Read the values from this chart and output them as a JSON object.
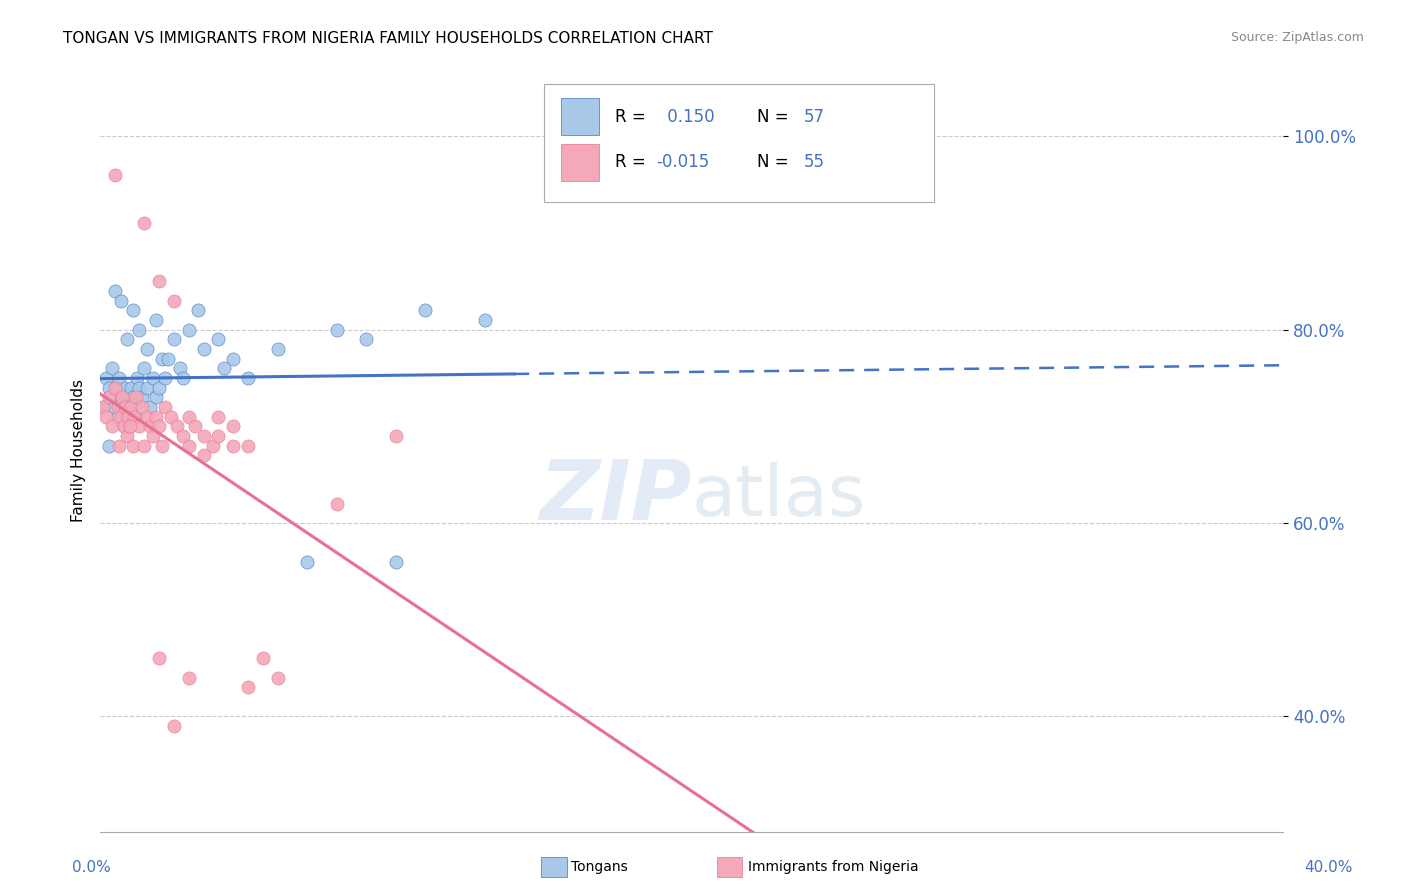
{
  "title": "TONGAN VS IMMIGRANTS FROM NIGERIA FAMILY HOUSEHOLDS CORRELATION CHART",
  "source": "Source: ZipAtlas.com",
  "ylabel": "Family Households",
  "xlim": [
    0.0,
    40.0
  ],
  "ylim": [
    28.0,
    107.0
  ],
  "y_ticks": [
    40.0,
    60.0,
    80.0,
    100.0
  ],
  "blue_R": 0.15,
  "blue_N": 57,
  "pink_R": -0.015,
  "pink_N": 55,
  "blue_color": "#a8c8e8",
  "pink_color": "#f4a8b8",
  "blue_line_color": "#4472c4",
  "pink_line_color": "#e87090",
  "watermark_zip": "ZIP",
  "watermark_atlas": "atlas",
  "legend_label_blue": "Tongans",
  "legend_label_pink": "Immigrants from Nigeria",
  "blue_scatter_x": [
    0.1,
    0.2,
    0.3,
    0.35,
    0.4,
    0.5,
    0.55,
    0.6,
    0.65,
    0.7,
    0.75,
    0.8,
    0.85,
    0.9,
    0.95,
    1.0,
    1.05,
    1.1,
    1.15,
    1.2,
    1.25,
    1.3,
    1.4,
    1.5,
    1.6,
    1.7,
    1.8,
    1.9,
    2.0,
    2.1,
    2.2,
    2.5,
    2.7,
    3.0,
    3.5,
    4.0,
    4.5,
    5.0,
    6.0,
    7.0,
    8.0,
    9.0,
    10.0,
    11.0,
    13.0,
    0.3,
    0.5,
    0.7,
    0.9,
    1.1,
    1.3,
    1.6,
    1.9,
    2.3,
    2.8,
    3.3,
    4.2
  ],
  "blue_scatter_y": [
    72,
    75,
    74,
    73,
    76,
    72,
    74,
    71,
    75,
    73,
    72,
    70,
    74,
    73,
    72,
    71,
    74,
    73,
    72,
    71,
    75,
    74,
    73,
    76,
    74,
    72,
    75,
    73,
    74,
    77,
    75,
    79,
    76,
    80,
    78,
    79,
    77,
    75,
    78,
    56,
    80,
    79,
    56,
    82,
    81,
    68,
    84,
    83,
    79,
    82,
    80,
    78,
    81,
    77,
    75,
    82,
    76
  ],
  "pink_scatter_x": [
    0.1,
    0.2,
    0.3,
    0.4,
    0.5,
    0.6,
    0.65,
    0.7,
    0.75,
    0.8,
    0.85,
    0.9,
    0.95,
    1.0,
    1.05,
    1.1,
    1.15,
    1.2,
    1.3,
    1.4,
    1.5,
    1.6,
    1.7,
    1.8,
    1.9,
    2.0,
    2.1,
    2.2,
    2.4,
    2.6,
    2.8,
    3.0,
    3.2,
    3.5,
    3.8,
    4.0,
    4.5,
    5.0,
    5.5,
    6.0,
    2.0,
    2.5,
    3.0,
    3.5,
    4.0,
    8.0,
    10.0,
    3.0,
    2.0,
    4.5,
    0.5,
    1.0,
    1.5,
    2.5,
    5.0
  ],
  "pink_scatter_y": [
    72,
    71,
    73,
    70,
    74,
    72,
    68,
    71,
    73,
    70,
    72,
    69,
    71,
    70,
    72,
    68,
    71,
    73,
    70,
    72,
    68,
    71,
    70,
    69,
    71,
    70,
    68,
    72,
    71,
    70,
    69,
    71,
    70,
    69,
    68,
    71,
    70,
    68,
    46,
    44,
    85,
    83,
    68,
    67,
    69,
    62,
    69,
    44,
    46,
    68,
    96,
    70,
    91,
    39,
    43
  ],
  "blue_solid_end_x": 14.0,
  "blue_dashed_end_x": 40.0
}
